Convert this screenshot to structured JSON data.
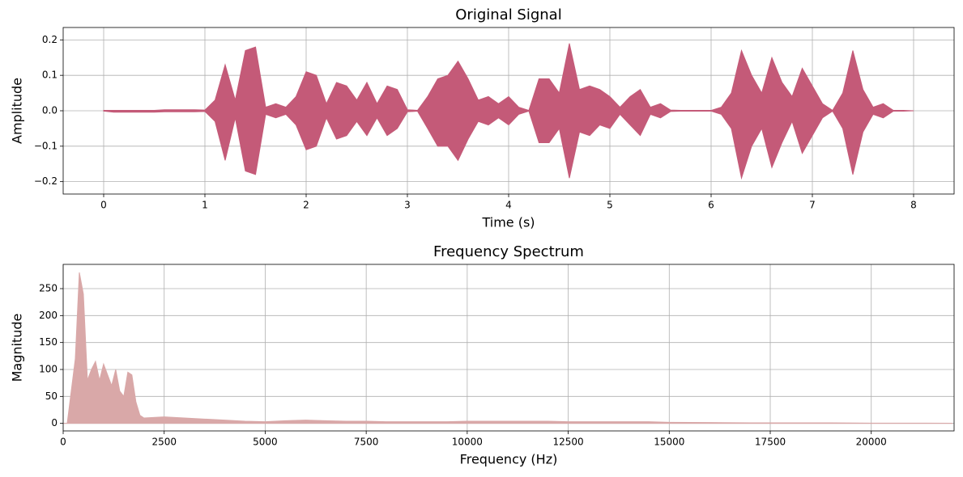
{
  "chart_data": [
    {
      "type": "area",
      "title": "Original Signal",
      "x_label": "Time (s)",
      "y_label": "Amplitude",
      "x": [
        0,
        0.1,
        0.2,
        0.3,
        0.4,
        0.5,
        0.6,
        0.7,
        0.8,
        0.9,
        1.0,
        1.1,
        1.2,
        1.3,
        1.4,
        1.5,
        1.6,
        1.7,
        1.8,
        1.9,
        2.0,
        2.1,
        2.2,
        2.3,
        2.4,
        2.5,
        2.6,
        2.7,
        2.8,
        2.9,
        3.0,
        3.1,
        3.2,
        3.3,
        3.4,
        3.5,
        3.6,
        3.7,
        3.8,
        3.9,
        4.0,
        4.1,
        4.2,
        4.3,
        4.4,
        4.5,
        4.6,
        4.7,
        4.8,
        4.9,
        5.0,
        5.1,
        5.2,
        5.3,
        5.4,
        5.5,
        5.6,
        5.7,
        5.8,
        5.9,
        6.0,
        6.1,
        6.2,
        6.3,
        6.4,
        6.5,
        6.6,
        6.7,
        6.8,
        6.9,
        7.0,
        7.1,
        7.2,
        7.3,
        7.4,
        7.5,
        7.6,
        7.7,
        7.8,
        7.9,
        8.0
      ],
      "series": [
        {
          "color": "#c45a78",
          "values": [
            0.001,
            0.001,
            0.001,
            0.001,
            0.001,
            0.001,
            0.003,
            0.003,
            0.003,
            0.003,
            0.002,
            0.03,
            0.13,
            0.03,
            0.17,
            0.18,
            0.01,
            0.02,
            0.01,
            0.04,
            0.11,
            0.1,
            0.02,
            0.08,
            0.07,
            0.03,
            0.08,
            0.02,
            0.07,
            0.06,
            0.003,
            0.001,
            0.04,
            0.09,
            0.1,
            0.14,
            0.09,
            0.03,
            0.04,
            0.02,
            0.04,
            0.01,
            0.001,
            0.09,
            0.09,
            0.05,
            0.19,
            0.06,
            0.07,
            0.06,
            0.04,
            0.01,
            0.04,
            0.06,
            0.01,
            0.02,
            0.002,
            0.001,
            0.001,
            0.001,
            0.001,
            0.01,
            0.05,
            0.17,
            0.1,
            0.05,
            0.15,
            0.08,
            0.04,
            0.12,
            0.07,
            0.02,
            0.001,
            0.05,
            0.17,
            0.06,
            0.01,
            0.02,
            0.001,
            0.001,
            0
          ]
        },
        {
          "color": "#c45a78",
          "values": [
            -0.001,
            -0.004,
            -0.004,
            -0.004,
            -0.004,
            -0.004,
            -0.003,
            -0.003,
            -0.003,
            -0.003,
            -0.002,
            -0.03,
            -0.14,
            -0.02,
            -0.17,
            -0.18,
            -0.01,
            -0.02,
            -0.01,
            -0.04,
            -0.11,
            -0.1,
            -0.02,
            -0.08,
            -0.07,
            -0.03,
            -0.07,
            -0.02,
            -0.07,
            -0.05,
            -0.003,
            -0.001,
            -0.05,
            -0.1,
            -0.1,
            -0.14,
            -0.08,
            -0.03,
            -0.04,
            -0.02,
            -0.04,
            -0.01,
            -0.001,
            -0.09,
            -0.09,
            -0.05,
            -0.19,
            -0.06,
            -0.07,
            -0.04,
            -0.05,
            -0.01,
            -0.04,
            -0.07,
            -0.01,
            -0.02,
            -0.002,
            -0.001,
            -0.001,
            -0.001,
            -0.001,
            -0.01,
            -0.05,
            -0.19,
            -0.1,
            -0.05,
            -0.16,
            -0.09,
            -0.03,
            -0.12,
            -0.07,
            -0.02,
            -0.001,
            -0.05,
            -0.18,
            -0.06,
            -0.01,
            -0.02,
            -0.001,
            -0.001,
            0
          ]
        }
      ],
      "xlim": [
        -0.4,
        8.4
      ],
      "ylim": [
        -0.235,
        0.235
      ],
      "xticks": [
        0,
        1,
        2,
        3,
        4,
        5,
        6,
        7,
        8
      ],
      "yticks": [
        {
          "value": -0.2,
          "label": "−0.2"
        },
        {
          "value": -0.1,
          "label": "−0.1"
        },
        {
          "value": 0,
          "label": "0.0"
        },
        0.1,
        0.2
      ],
      "grid": true
    },
    {
      "type": "area",
      "title": "Frequency Spectrum",
      "x_label": "Frequency (Hz)",
      "y_label": "Magnitude",
      "x": [
        0,
        100,
        200,
        300,
        400,
        500,
        600,
        700,
        800,
        900,
        1000,
        1100,
        1200,
        1300,
        1400,
        1500,
        1600,
        1700,
        1800,
        1900,
        2000,
        2500,
        3000,
        3500,
        4000,
        4500,
        5000,
        5500,
        6000,
        6500,
        7000,
        7500,
        8000,
        8500,
        9000,
        9500,
        10000,
        10500,
        11000,
        11500,
        12000,
        12500,
        13000,
        13500,
        14000,
        14500,
        15000,
        16000,
        17000,
        18000,
        19000,
        20000,
        21000,
        22000
      ],
      "series": [
        {
          "color": "#d9a8a8",
          "values": [
            0,
            0,
            60,
            120,
            280,
            240,
            80,
            100,
            115,
            80,
            110,
            90,
            70,
            100,
            60,
            50,
            95,
            90,
            40,
            15,
            10,
            12,
            10,
            8,
            6,
            4,
            3,
            5,
            6,
            5,
            4,
            4,
            3,
            3,
            3,
            3,
            4,
            4,
            4,
            4,
            4,
            3,
            3,
            3,
            3,
            3,
            2,
            1.5,
            1,
            1,
            1,
            0.5,
            0.5,
            0.3
          ]
        }
      ],
      "xlim": [
        0,
        22050
      ],
      "ylim": [
        -14,
        295
      ],
      "xticks": [
        0,
        2500,
        5000,
        7500,
        10000,
        12500,
        15000,
        17500,
        20000
      ],
      "yticks": [
        0,
        50,
        100,
        150,
        200,
        250
      ],
      "grid": true
    }
  ]
}
